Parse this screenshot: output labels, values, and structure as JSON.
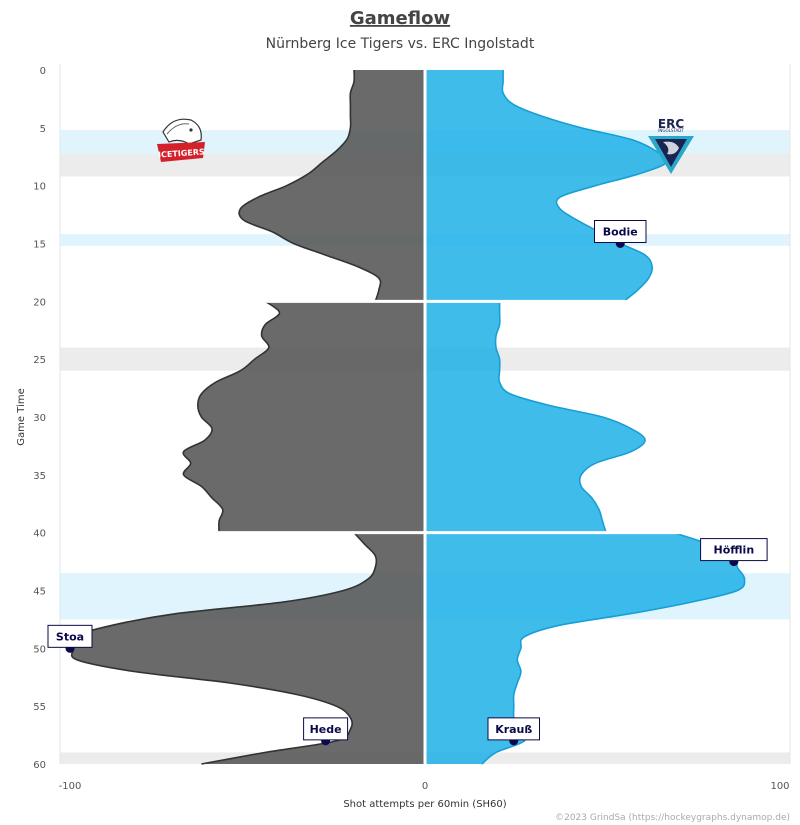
{
  "title": "Gameflow",
  "subtitle": "Nürnberg Ice Tigers vs. ERC Ingolstadt",
  "credit": "©2023 GrindSa (https://hockeygraphs.dynamop.de)",
  "logos": {
    "home": {
      "name": "nurnberg-ice-tigers-logo",
      "text": "ICETIGERS"
    },
    "away": {
      "name": "erc-ingolstadt-logo",
      "text": "ERC",
      "subtext": "INGOLSTADT"
    }
  },
  "colors": {
    "home": "#555555",
    "away": "#1fb0e8",
    "home_pp": "#ececec",
    "away_pp": "#dff4fc",
    "goal_dot": "#0a0a4a"
  },
  "chart_data": {
    "type": "area",
    "xlabel": "Shot attempts per 60min (SH60)",
    "ylabel": "Game Time",
    "xlim": [
      -100,
      100
    ],
    "ylim": [
      0,
      60
    ],
    "x_ticks": [
      "-100",
      "0",
      "100"
    ],
    "y_ticks": [
      "0",
      "5",
      "10",
      "15",
      "20",
      "25",
      "30",
      "35",
      "40",
      "45",
      "50",
      "55",
      "60"
    ],
    "series": [
      {
        "team": "Nürnberg Ice Tigers",
        "side": "home",
        "points": [
          [
            0,
            -20
          ],
          [
            1,
            -20
          ],
          [
            2,
            -21
          ],
          [
            3,
            -21
          ],
          [
            4,
            -21
          ],
          [
            5,
            -21
          ],
          [
            6,
            -22
          ],
          [
            7,
            -25
          ],
          [
            8,
            -29
          ],
          [
            9,
            -33
          ],
          [
            10,
            -39
          ],
          [
            11,
            -47
          ],
          [
            12,
            -52
          ],
          [
            13,
            -51
          ],
          [
            14,
            -43
          ],
          [
            15,
            -37
          ],
          [
            16,
            -28
          ],
          [
            17,
            -19
          ],
          [
            18,
            -13
          ],
          [
            19,
            -13
          ],
          [
            20,
            -14
          ],
          [
            20,
            -45
          ],
          [
            21,
            -41
          ],
          [
            22,
            -45
          ],
          [
            23,
            -46
          ],
          [
            24,
            -44
          ],
          [
            25,
            -48
          ],
          [
            26,
            -52
          ],
          [
            27,
            -59
          ],
          [
            28,
            -63
          ],
          [
            29,
            -64
          ],
          [
            30,
            -63
          ],
          [
            31,
            -60
          ],
          [
            32,
            -62
          ],
          [
            33,
            -68
          ],
          [
            34,
            -66
          ],
          [
            35,
            -68
          ],
          [
            36,
            -63
          ],
          [
            37,
            -60
          ],
          [
            38,
            -57
          ],
          [
            39,
            -58
          ],
          [
            40,
            -58
          ],
          [
            40,
            -20
          ],
          [
            41,
            -17
          ],
          [
            42,
            -14
          ],
          [
            43,
            -14
          ],
          [
            44,
            -16
          ],
          [
            45,
            -23
          ],
          [
            46,
            -40
          ],
          [
            47,
            -70
          ],
          [
            48,
            -88
          ],
          [
            49,
            -99
          ],
          [
            50,
            -99
          ],
          [
            51,
            -98
          ],
          [
            52,
            -82
          ],
          [
            53,
            -55
          ],
          [
            54,
            -36
          ],
          [
            55,
            -25
          ],
          [
            56,
            -21
          ],
          [
            57,
            -21
          ],
          [
            58,
            -25
          ],
          [
            59,
            -45
          ],
          [
            60,
            -63
          ]
        ]
      },
      {
        "team": "ERC Ingolstadt",
        "side": "away",
        "points": [
          [
            0,
            22
          ],
          [
            1,
            22
          ],
          [
            2,
            22
          ],
          [
            3,
            25
          ],
          [
            4,
            33
          ],
          [
            5,
            44
          ],
          [
            6,
            58
          ],
          [
            7,
            65
          ],
          [
            8,
            68
          ],
          [
            9,
            60
          ],
          [
            10,
            48
          ],
          [
            11,
            38
          ],
          [
            12,
            38
          ],
          [
            13,
            43
          ],
          [
            14,
            49
          ],
          [
            15,
            55
          ],
          [
            16,
            62
          ],
          [
            17,
            64
          ],
          [
            18,
            63
          ],
          [
            19,
            60
          ],
          [
            20,
            56
          ],
          [
            20,
            21
          ],
          [
            21,
            21
          ],
          [
            22,
            21
          ],
          [
            23,
            20
          ],
          [
            24,
            20
          ],
          [
            25,
            21
          ],
          [
            26,
            21
          ],
          [
            27,
            21
          ],
          [
            28,
            24
          ],
          [
            29,
            35
          ],
          [
            30,
            50
          ],
          [
            31,
            58
          ],
          [
            32,
            62
          ],
          [
            33,
            58
          ],
          [
            34,
            48
          ],
          [
            35,
            44
          ],
          [
            36,
            44
          ],
          [
            37,
            47
          ],
          [
            38,
            49
          ],
          [
            39,
            50
          ],
          [
            40,
            51
          ],
          [
            40,
            70
          ],
          [
            41,
            80
          ],
          [
            42,
            87
          ],
          [
            43,
            88
          ],
          [
            44,
            90
          ],
          [
            45,
            88
          ],
          [
            46,
            75
          ],
          [
            47,
            58
          ],
          [
            48,
            38
          ],
          [
            49,
            28
          ],
          [
            50,
            27
          ],
          [
            51,
            26
          ],
          [
            52,
            27
          ],
          [
            53,
            26
          ],
          [
            54,
            25
          ],
          [
            55,
            25
          ],
          [
            56,
            25
          ],
          [
            57,
            26
          ],
          [
            58,
            28
          ],
          [
            59,
            20
          ],
          [
            60,
            16
          ]
        ]
      }
    ],
    "goals": [
      {
        "player": "Bodie",
        "team": "ERC Ingolstadt",
        "time": 15,
        "x": 55
      },
      {
        "player": "Höfflin",
        "team": "ERC Ingolstadt",
        "time": 42.5,
        "x": 87
      },
      {
        "player": "Stoa",
        "team": "Nürnberg Ice Tigers",
        "time": 50,
        "x": -100
      },
      {
        "player": "Hede",
        "team": "Nürnberg Ice Tigers",
        "time": 58,
        "x": -28
      },
      {
        "player": "Krauß",
        "team": "ERC Ingolstadt",
        "time": 58,
        "x": 25
      }
    ],
    "power_plays": [
      {
        "team": "ERC Ingolstadt",
        "start": 5.2,
        "end": 7.2
      },
      {
        "team": "Nürnberg Ice Tigers",
        "start": 7.2,
        "end": 9.2
      },
      {
        "team": "ERC Ingolstadt",
        "start": 14.2,
        "end": 15.2
      },
      {
        "team": "Nürnberg Ice Tigers",
        "start": 24,
        "end": 26
      },
      {
        "team": "ERC Ingolstadt",
        "start": 43.5,
        "end": 47.5
      },
      {
        "team": "Nürnberg Ice Tigers",
        "start": 59,
        "end": 60
      }
    ]
  }
}
